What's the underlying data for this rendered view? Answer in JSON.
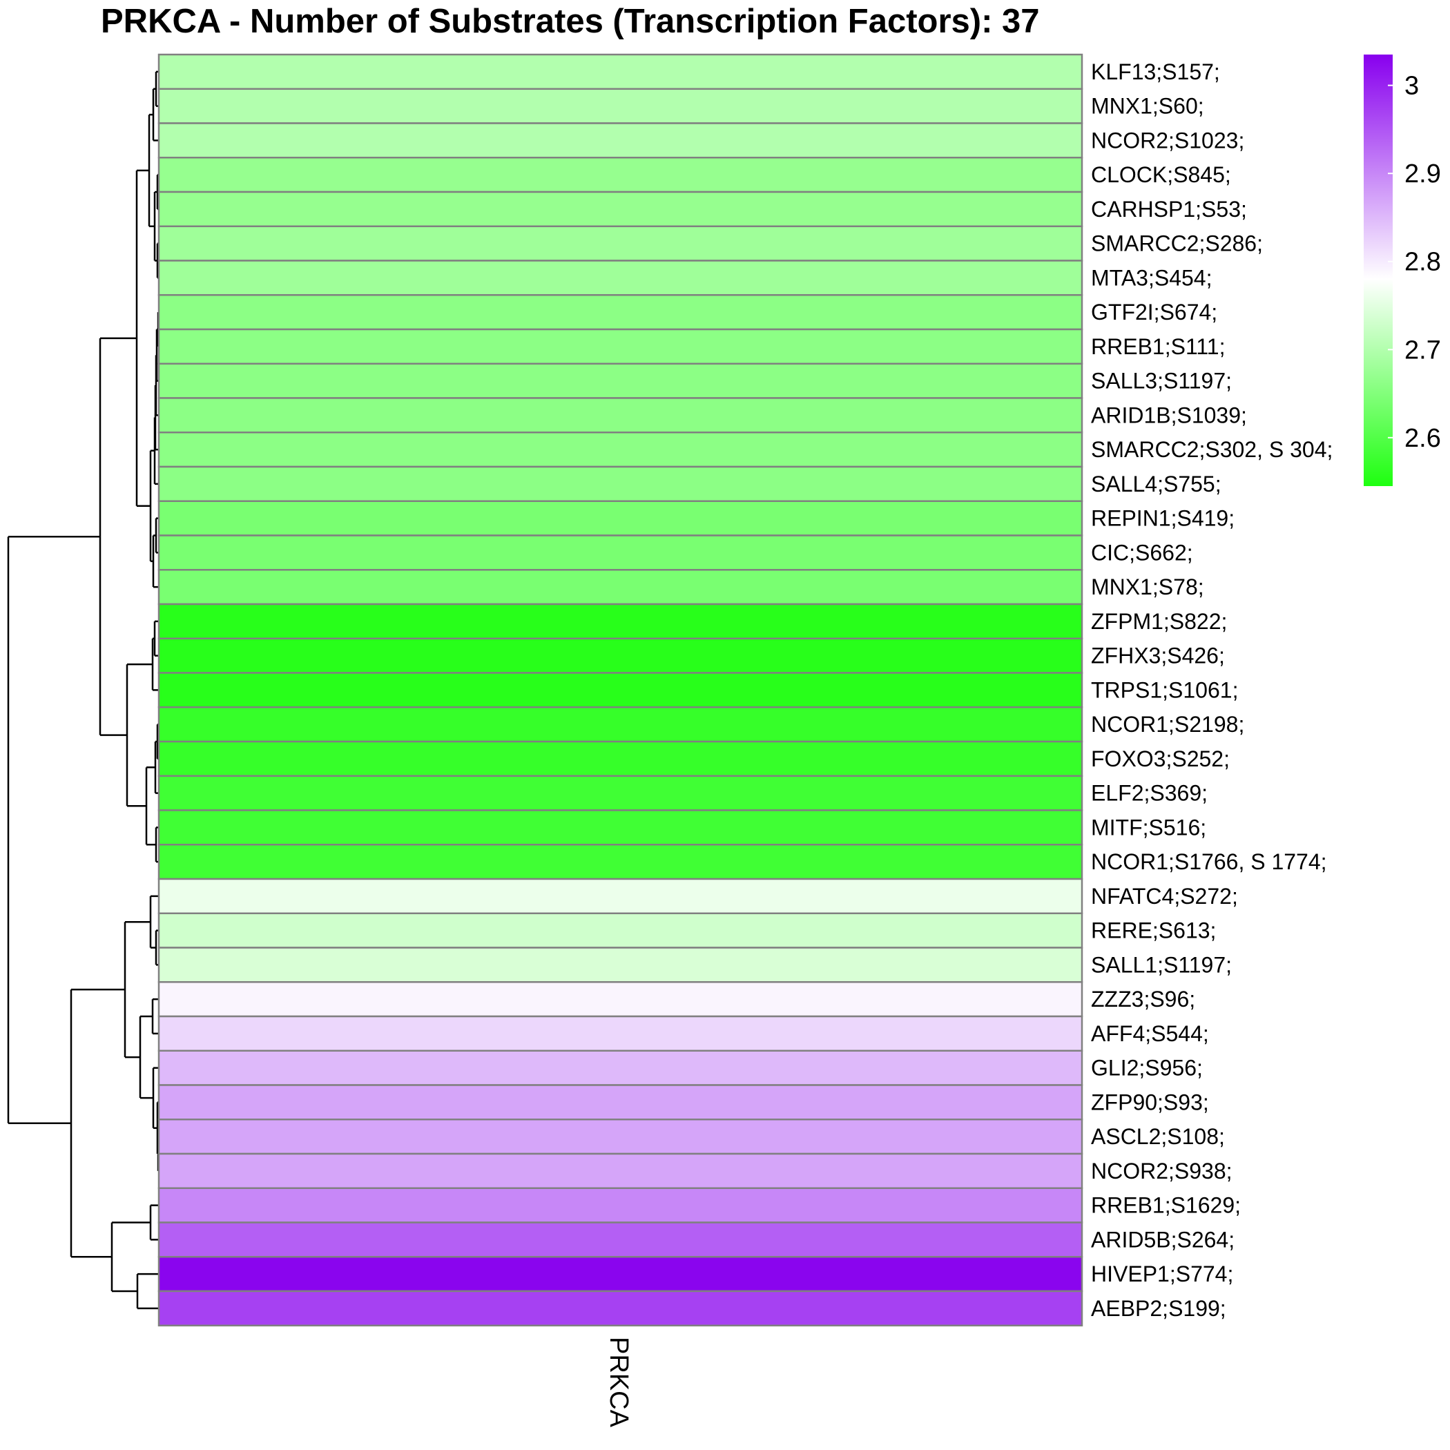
{
  "chart_data": {
    "type": "heatmap",
    "title": "PRKCA - Number of Substrates (Transcription Factors): 37",
    "columns": [
      "PRKCA"
    ],
    "rows": [
      "KLF13;S157;",
      "MNX1;S60;",
      "NCOR2;S1023;",
      "CLOCK;S845;",
      "CARHSP1;S53;",
      "SMARCC2;S286;",
      "MTA3;S454;",
      "GTF2I;S674;",
      "RREB1;S111;",
      "SALL3;S1197;",
      "ARID1B;S1039;",
      "SMARCC2;S302, S 304;",
      "SALL4;S755;",
      "REPIN1;S419;",
      "CIC;S662;",
      "MNX1;S78;",
      "ZFPM1;S822;",
      "ZFHX3;S426;",
      "TRPS1;S1061;",
      "NCOR1;S2198;",
      "FOXO3;S252;",
      "ELF2;S369;",
      "MITF;S516;",
      "NCOR1;S1766, S 1774;",
      "NFATC4;S272;",
      "RERE;S613;",
      "SALL1;S1197;",
      "ZZZ3;S96;",
      "AFF4;S544;",
      "GLI2;S956;",
      "ZFP90;S93;",
      "ASCL2;S108;",
      "NCOR2;S938;",
      "RREB1;S1629;",
      "ARID5B;S264;",
      "HIVEP1;S774;",
      "AEBP2;S199;"
    ],
    "values": [
      2.7,
      2.7,
      2.7,
      2.67,
      2.67,
      2.68,
      2.68,
      2.66,
      2.66,
      2.66,
      2.66,
      2.66,
      2.66,
      2.64,
      2.64,
      2.64,
      2.555,
      2.555,
      2.555,
      2.57,
      2.57,
      2.58,
      2.58,
      2.58,
      2.76,
      2.73,
      2.74,
      2.79,
      2.82,
      2.85,
      2.87,
      2.87,
      2.87,
      2.9,
      2.94,
      3.03,
      2.97
    ],
    "legend": {
      "ticks": [
        3,
        2.9,
        2.8,
        2.7,
        2.6
      ],
      "min": 2.545,
      "max": 3.035,
      "colors": {
        "low": "#1EFF10",
        "mid": "#FFFFFF",
        "high": "#8800EE"
      },
      "mid_value": 2.78,
      "placement": "right"
    },
    "dendrogram": "row"
  }
}
